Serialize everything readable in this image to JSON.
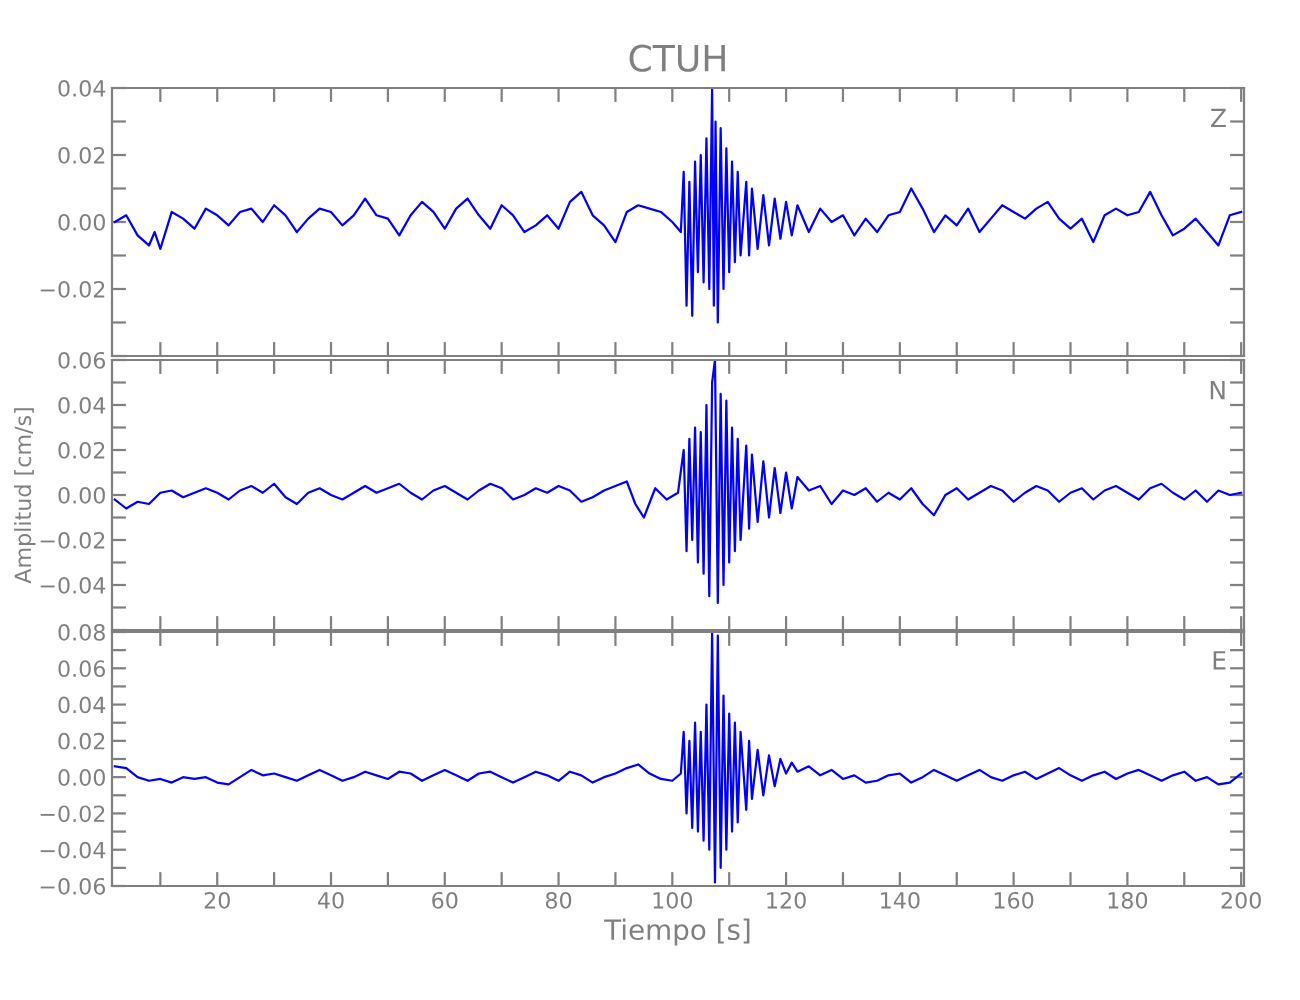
{
  "chart_data": [
    {
      "type": "line",
      "title": "CTUH",
      "annotations": [
        "Z"
      ],
      "tick_labels": "y",
      "grid": false,
      "xlim": [
        1.5,
        200.5
      ],
      "xticks": [
        {
          "value": 10,
          "label": null
        },
        {
          "value": 20,
          "label": null
        },
        {
          "value": 30,
          "label": null
        },
        {
          "value": 40,
          "label": null
        },
        {
          "value": 50,
          "label": null
        },
        {
          "value": 60,
          "label": null
        },
        {
          "value": 70,
          "label": null
        },
        {
          "value": 80,
          "label": null
        },
        {
          "value": 90,
          "label": null
        },
        {
          "value": 100,
          "label": null
        },
        {
          "value": 110,
          "label": null
        },
        {
          "value": 120,
          "label": null
        },
        {
          "value": 130,
          "label": null
        },
        {
          "value": 140,
          "label": null
        },
        {
          "value": 150,
          "label": null
        },
        {
          "value": 160,
          "label": null
        },
        {
          "value": 170,
          "label": null
        },
        {
          "value": 180,
          "label": null
        },
        {
          "value": 190,
          "label": null
        },
        {
          "value": 200,
          "label": null
        }
      ],
      "ylim": [
        -0.04,
        0.04
      ],
      "yticks": [
        {
          "value": -0.04,
          "label": null
        },
        {
          "value": -0.03,
          "label": null
        },
        {
          "value": -0.02,
          "label": "−0.02"
        },
        {
          "value": -0.01,
          "label": null
        },
        {
          "value": 0.0,
          "label": "0.00"
        },
        {
          "value": 0.01,
          "label": null
        },
        {
          "value": 0.02,
          "label": "0.02"
        },
        {
          "value": 0.03,
          "label": null
        },
        {
          "value": 0.04,
          "label": "0.04"
        }
      ],
      "series": [
        {
          "color": "#0000ff",
          "x": [
            2,
            4,
            6,
            8,
            9,
            10,
            12,
            14,
            16,
            18,
            20,
            22,
            24,
            26,
            28,
            30,
            32,
            34,
            36,
            38,
            40,
            42,
            44,
            46,
            48,
            50,
            52,
            54,
            56,
            58,
            60,
            62,
            64,
            66,
            68,
            70,
            72,
            74,
            76,
            78,
            80,
            82,
            84,
            86,
            88,
            90,
            92,
            94,
            96,
            98,
            100,
            101.5,
            102,
            102.5,
            103,
            103.5,
            104,
            104.5,
            105,
            105.5,
            106,
            106.5,
            107,
            107.3,
            107.6,
            108,
            108.5,
            109,
            109.5,
            110,
            110.5,
            111,
            111.5,
            112,
            113,
            113.5,
            114,
            115,
            116,
            117,
            118,
            119,
            120,
            121,
            122,
            124,
            126,
            128,
            130,
            132,
            134,
            136,
            138,
            140,
            142,
            144,
            146,
            148,
            150,
            152,
            154,
            156,
            158,
            160,
            162,
            164,
            166,
            168,
            170,
            172,
            174,
            176,
            178,
            180,
            182,
            184,
            186,
            188,
            190,
            192,
            194,
            196,
            198,
            200
          ],
          "values": [
            0.0,
            0.002,
            -0.004,
            -0.007,
            -0.003,
            -0.008,
            0.003,
            0.001,
            -0.002,
            0.004,
            0.002,
            -0.001,
            0.003,
            0.004,
            0.0,
            0.005,
            0.002,
            -0.003,
            0.001,
            0.004,
            0.003,
            -0.001,
            0.002,
            0.007,
            0.002,
            0.001,
            -0.004,
            0.002,
            0.006,
            0.003,
            -0.002,
            0.004,
            0.007,
            0.002,
            -0.002,
            0.005,
            0.002,
            -0.003,
            -0.001,
            0.002,
            -0.002,
            0.006,
            0.009,
            0.002,
            -0.001,
            -0.006,
            0.003,
            0.005,
            0.004,
            0.003,
            0.0,
            -0.003,
            0.015,
            -0.025,
            0.012,
            -0.028,
            0.018,
            -0.015,
            0.02,
            -0.018,
            0.025,
            -0.02,
            0.04,
            -0.025,
            0.03,
            -0.03,
            0.028,
            -0.02,
            0.022,
            -0.015,
            0.018,
            -0.012,
            0.015,
            -0.01,
            0.012,
            -0.01,
            0.01,
            -0.008,
            0.008,
            -0.007,
            0.007,
            -0.005,
            0.006,
            -0.004,
            0.005,
            -0.003,
            0.004,
            0.0,
            0.002,
            -0.004,
            0.001,
            -0.003,
            0.002,
            0.003,
            0.01,
            0.004,
            -0.003,
            0.002,
            -0.001,
            0.004,
            -0.003,
            0.001,
            0.005,
            0.003,
            0.001,
            0.004,
            0.006,
            0.001,
            -0.002,
            0.001,
            -0.006,
            0.002,
            0.004,
            0.002,
            0.003,
            0.009,
            0.002,
            -0.004,
            -0.002,
            0.001,
            -0.003,
            -0.007,
            0.002,
            0.003
          ]
        }
      ]
    },
    {
      "type": "line",
      "ylabel": "Amplitud [cm/s]",
      "annotations": [
        "N"
      ],
      "tick_labels": "y",
      "grid": false,
      "xlim": [
        1.5,
        200.5
      ],
      "xticks": [
        {
          "value": 10,
          "label": null
        },
        {
          "value": 20,
          "label": null
        },
        {
          "value": 30,
          "label": null
        },
        {
          "value": 40,
          "label": null
        },
        {
          "value": 50,
          "label": null
        },
        {
          "value": 60,
          "label": null
        },
        {
          "value": 70,
          "label": null
        },
        {
          "value": 80,
          "label": null
        },
        {
          "value": 90,
          "label": null
        },
        {
          "value": 100,
          "label": null
        },
        {
          "value": 110,
          "label": null
        },
        {
          "value": 120,
          "label": null
        },
        {
          "value": 130,
          "label": null
        },
        {
          "value": 140,
          "label": null
        },
        {
          "value": 150,
          "label": null
        },
        {
          "value": 160,
          "label": null
        },
        {
          "value": 170,
          "label": null
        },
        {
          "value": 180,
          "label": null
        },
        {
          "value": 190,
          "label": null
        },
        {
          "value": 200,
          "label": null
        }
      ],
      "ylim": [
        -0.06,
        0.06
      ],
      "yticks": [
        {
          "value": -0.06,
          "label": null
        },
        {
          "value": -0.05,
          "label": null
        },
        {
          "value": -0.04,
          "label": "−0.04"
        },
        {
          "value": -0.03,
          "label": null
        },
        {
          "value": -0.02,
          "label": "−0.02"
        },
        {
          "value": -0.01,
          "label": null
        },
        {
          "value": 0.0,
          "label": "0.00"
        },
        {
          "value": 0.01,
          "label": null
        },
        {
          "value": 0.02,
          "label": "0.02"
        },
        {
          "value": 0.03,
          "label": null
        },
        {
          "value": 0.04,
          "label": "0.04"
        },
        {
          "value": 0.05,
          "label": null
        },
        {
          "value": 0.06,
          "label": "0.06"
        }
      ],
      "series": [
        {
          "color": "#0000ff",
          "x": [
            2,
            4,
            6,
            8,
            10,
            12,
            14,
            16,
            18,
            20,
            22,
            24,
            26,
            28,
            30,
            32,
            34,
            36,
            38,
            40,
            42,
            44,
            46,
            48,
            50,
            52,
            54,
            56,
            58,
            60,
            62,
            64,
            66,
            68,
            70,
            72,
            74,
            76,
            78,
            80,
            82,
            84,
            86,
            88,
            90,
            92,
            93.5,
            95,
            97,
            99,
            101,
            102,
            102.5,
            103,
            103.5,
            104,
            104.5,
            105,
            105.5,
            106,
            106.5,
            107,
            107.5,
            108,
            108.5,
            109,
            109.5,
            110,
            110.5,
            111,
            111.5,
            112,
            113,
            113.5,
            114,
            115,
            116,
            117,
            118,
            119,
            120,
            121,
            122,
            124,
            126,
            128,
            130,
            132,
            134,
            136,
            138,
            140,
            142,
            144,
            146,
            148,
            150,
            152,
            154,
            156,
            158,
            160,
            162,
            164,
            166,
            168,
            170,
            172,
            174,
            176,
            178,
            180,
            182,
            184,
            186,
            188,
            190,
            192,
            194,
            196,
            198,
            200
          ],
          "values": [
            -0.002,
            -0.006,
            -0.003,
            -0.004,
            0.001,
            0.002,
            -0.001,
            0.001,
            0.003,
            0.001,
            -0.002,
            0.002,
            0.004,
            0.001,
            0.005,
            -0.001,
            -0.004,
            0.001,
            0.003,
            0.0,
            -0.002,
            0.001,
            0.004,
            0.001,
            0.003,
            0.005,
            0.001,
            -0.002,
            0.002,
            0.004,
            0.001,
            -0.002,
            0.002,
            0.005,
            0.003,
            -0.002,
            0.0,
            0.003,
            0.001,
            0.004,
            0.002,
            -0.003,
            -0.001,
            0.002,
            0.004,
            0.006,
            -0.004,
            -0.01,
            0.003,
            -0.002,
            0.001,
            0.02,
            -0.025,
            0.025,
            -0.02,
            0.03,
            -0.03,
            0.028,
            -0.035,
            0.04,
            -0.045,
            0.05,
            0.06,
            -0.048,
            0.045,
            -0.04,
            0.042,
            -0.03,
            0.03,
            -0.025,
            0.025,
            -0.02,
            0.022,
            -0.015,
            0.018,
            -0.012,
            0.015,
            -0.01,
            0.012,
            -0.008,
            0.01,
            -0.006,
            0.008,
            0.002,
            0.004,
            -0.004,
            0.002,
            0.0,
            0.003,
            -0.003,
            0.001,
            -0.002,
            0.003,
            -0.004,
            -0.009,
            0.0,
            0.003,
            -0.002,
            0.001,
            0.004,
            0.002,
            -0.003,
            0.001,
            0.004,
            0.002,
            -0.003,
            0.001,
            0.003,
            -0.002,
            0.002,
            0.004,
            0.001,
            -0.002,
            0.003,
            0.005,
            0.001,
            -0.002,
            0.002,
            -0.003,
            0.002,
            0.0,
            0.001
          ]
        }
      ]
    },
    {
      "type": "line",
      "xlabel": "Tiempo [s]",
      "annotations": [
        "E"
      ],
      "grid": false,
      "xlim": [
        1.5,
        200.5
      ],
      "xticks": [
        {
          "value": 10,
          "label": null
        },
        20,
        {
          "value": 30,
          "label": null
        },
        40,
        {
          "value": 50,
          "label": null
        },
        60,
        {
          "value": 70,
          "label": null
        },
        80,
        {
          "value": 90,
          "label": null
        },
        100,
        {
          "value": 110,
          "label": null
        },
        120,
        {
          "value": 130,
          "label": null
        },
        140,
        {
          "value": 150,
          "label": null
        },
        160,
        {
          "value": 170,
          "label": null
        },
        180,
        {
          "value": 190,
          "label": null
        },
        200
      ],
      "ylim": [
        -0.06,
        0.08
      ],
      "yticks": [
        {
          "value": -0.06,
          "label": "−0.06"
        },
        {
          "value": -0.05,
          "label": null
        },
        {
          "value": -0.04,
          "label": "−0.04"
        },
        {
          "value": -0.03,
          "label": null
        },
        {
          "value": -0.02,
          "label": "−0.02"
        },
        {
          "value": -0.01,
          "label": null
        },
        {
          "value": 0.0,
          "label": "0.00"
        },
        {
          "value": 0.01,
          "label": null
        },
        {
          "value": 0.02,
          "label": "0.02"
        },
        {
          "value": 0.03,
          "label": null
        },
        {
          "value": 0.04,
          "label": "0.04"
        },
        {
          "value": 0.05,
          "label": null
        },
        {
          "value": 0.06,
          "label": "0.06"
        },
        {
          "value": 0.07,
          "label": null
        },
        {
          "value": 0.08,
          "label": "0.08"
        }
      ],
      "series": [
        {
          "color": "#0000ff",
          "x": [
            2,
            4,
            6,
            8,
            10,
            12,
            14,
            16,
            18,
            20,
            22,
            24,
            26,
            28,
            30,
            32,
            34,
            36,
            38,
            40,
            42,
            44,
            46,
            48,
            50,
            52,
            54,
            56,
            58,
            60,
            62,
            64,
            66,
            68,
            70,
            72,
            74,
            76,
            78,
            80,
            82,
            84,
            86,
            88,
            90,
            92,
            94,
            96,
            98,
            100,
            101.5,
            102,
            102.5,
            103,
            103.5,
            104,
            104.5,
            105,
            105.5,
            106,
            106.5,
            107,
            107.5,
            108,
            108.5,
            109,
            109.5,
            110,
            110.5,
            111,
            111.5,
            112,
            113,
            113.5,
            114,
            115,
            116,
            117,
            118,
            119,
            120,
            121,
            122,
            124,
            126,
            128,
            130,
            132,
            134,
            136,
            138,
            140,
            142,
            144,
            146,
            148,
            150,
            152,
            154,
            156,
            158,
            160,
            162,
            164,
            166,
            168,
            170,
            172,
            174,
            176,
            178,
            180,
            182,
            184,
            186,
            188,
            190,
            192,
            194,
            196,
            198,
            200
          ],
          "values": [
            0.006,
            0.005,
            0.0,
            -0.002,
            -0.001,
            -0.003,
            0.0,
            -0.001,
            0.0,
            -0.003,
            -0.004,
            0.0,
            0.004,
            0.001,
            0.002,
            0.0,
            -0.002,
            0.001,
            0.004,
            0.001,
            -0.002,
            0.0,
            0.003,
            0.001,
            -0.001,
            0.003,
            0.002,
            -0.002,
            0.001,
            0.004,
            0.001,
            -0.002,
            0.002,
            0.003,
            0.0,
            -0.003,
            0.0,
            0.003,
            0.001,
            -0.002,
            0.003,
            0.001,
            -0.003,
            0.0,
            0.002,
            0.005,
            0.007,
            0.002,
            -0.001,
            -0.002,
            0.002,
            0.025,
            -0.02,
            0.02,
            -0.028,
            0.03,
            -0.03,
            0.025,
            -0.035,
            0.04,
            -0.04,
            0.08,
            -0.058,
            0.078,
            -0.05,
            0.045,
            -0.04,
            0.035,
            -0.03,
            0.03,
            -0.025,
            0.025,
            -0.018,
            0.02,
            -0.012,
            0.015,
            -0.01,
            0.012,
            -0.005,
            0.01,
            0.002,
            0.008,
            0.003,
            0.006,
            0.001,
            0.004,
            -0.001,
            0.001,
            -0.003,
            -0.002,
            0.001,
            0.002,
            -0.003,
            0.0,
            0.004,
            0.001,
            -0.002,
            0.001,
            0.004,
            0.0,
            -0.002,
            0.001,
            0.003,
            -0.001,
            0.002,
            0.005,
            0.001,
            -0.002,
            0.001,
            0.003,
            -0.001,
            0.002,
            0.004,
            0.001,
            -0.002,
            0.001,
            0.003,
            -0.002,
            0.0,
            -0.004,
            -0.003,
            0.002
          ]
        }
      ]
    }
  ]
}
